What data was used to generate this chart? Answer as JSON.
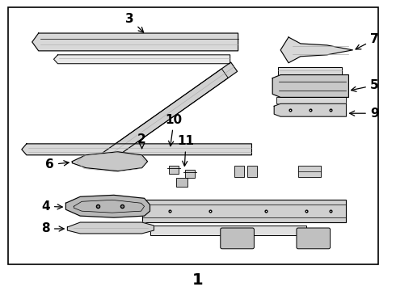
{
  "bg": "#ffffff",
  "border": "#000000",
  "lc": "#000000",
  "lc_light": "#888888",
  "title": "1",
  "figsize": [
    4.9,
    3.6
  ],
  "dpi": 100
}
